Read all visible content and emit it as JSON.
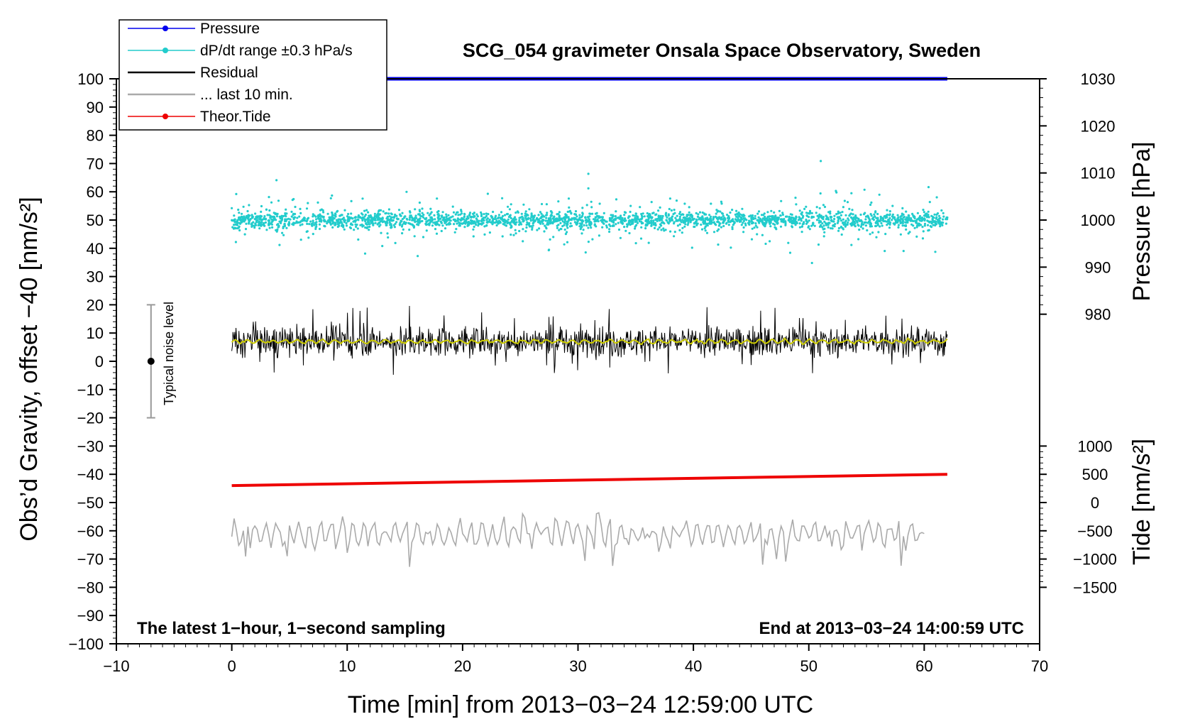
{
  "chart_data": {
    "type": "line",
    "title": "SCG_054 gravimeter Onsala Space Observatory, Sweden",
    "xlabel": "Time [min] from 2013−03−24 12:59:00 UTC",
    "ylabel_left": "Obs’d Gravity, offset −40 [nm/s²]",
    "ylabel_right_top": "Pressure [hPa]",
    "ylabel_right_bottom": "Tide [nm/s²]",
    "xlim": [
      -10,
      70
    ],
    "ylim_left": [
      -100,
      100
    ],
    "pressure_axis_range": [
      970,
      1030
    ],
    "tide_axis_range": [
      -1500,
      1000
    ],
    "x_ticks": [
      "−10",
      "0",
      "10",
      "20",
      "30",
      "40",
      "50",
      "60",
      "70"
    ],
    "y_ticks_left": [
      "100",
      "90",
      "80",
      "70",
      "60",
      "50",
      "40",
      "30",
      "20",
      "10",
      "0",
      "−10",
      "−20",
      "−30",
      "−40",
      "−50",
      "−60",
      "−70",
      "−80",
      "−90",
      "−100"
    ],
    "y_ticks_pressure": [
      "1030",
      "1020",
      "1010",
      "1000",
      "990",
      "980"
    ],
    "y_ticks_tide": [
      "1000",
      "500",
      "0",
      "−500",
      "−1000",
      "−1500"
    ],
    "footer_left": "The latest 1−hour, 1−second sampling",
    "footer_right": "End at 2013−03−24 14:00:59 UTC",
    "noise_label": "Typical noise level",
    "noise_bar": {
      "x": -7,
      "center": 0,
      "low": -20,
      "high": 20
    },
    "legend": {
      "placement": "top-left",
      "entries": [
        {
          "label": "Pressure",
          "color": "#0000ee",
          "marker": true
        },
        {
          "label": "dP/dt range ±0.3 hPa/s",
          "color": "#22cccc",
          "marker": true
        },
        {
          "label": "Residual",
          "color": "#000000",
          "marker": false
        },
        {
          "label": "... last 10 min.",
          "color": "#aaaaaa",
          "marker": false
        },
        {
          "label": "Theor.Tide",
          "color": "#ee0000",
          "marker": true
        }
      ]
    },
    "series": [
      {
        "name": "Pressure",
        "color": "#0000ee",
        "axis": "pressure",
        "x": [
          0,
          62
        ],
        "y": [
          1030,
          1030
        ]
      },
      {
        "name": "dP/dt range ±0.3 hPa/s",
        "color": "#22cccc",
        "axis": "gravity",
        "x_range": [
          0,
          62
        ],
        "center": 50,
        "typical_spread": 4,
        "extremes": [
          25,
          74
        ]
      },
      {
        "name": "Residual",
        "color": "#000000",
        "axis": "gravity",
        "x_range": [
          0,
          62
        ],
        "center": 7,
        "typical_spread": 5,
        "extremes": [
          -5,
          20
        ]
      },
      {
        "name": "Residual smoothed",
        "color": "#cccc00",
        "axis": "gravity",
        "x_range": [
          0,
          62
        ],
        "center": 7
      },
      {
        "name": "... last 10 min.",
        "color": "#aaaaaa",
        "axis": "gravity",
        "x_range": [
          0,
          60
        ],
        "center": -61,
        "extremes": [
          -73,
          -49
        ]
      },
      {
        "name": "Theor.Tide",
        "color": "#ee0000",
        "axis": "gravity",
        "x": [
          0,
          62
        ],
        "y": [
          -44,
          -40
        ]
      }
    ]
  }
}
